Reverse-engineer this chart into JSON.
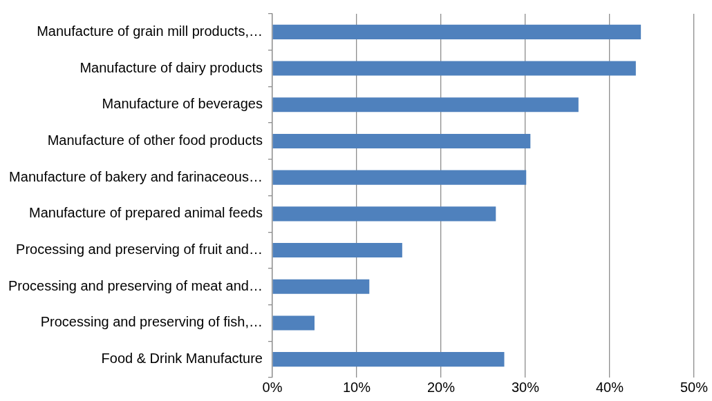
{
  "chart_data": {
    "type": "bar",
    "orientation": "horizontal",
    "categories": [
      "Manufacture of grain mill products,…",
      "Manufacture of dairy products",
      "Manufacture of beverages",
      "Manufacture of other food products",
      "Manufacture of bakery and farinaceous…",
      "Manufacture of prepared animal feeds",
      "Processing and preserving of fruit and…",
      "Processing and preserving of meat and…",
      "Processing and preserving of fish,…",
      "Food & Drink Manufacture"
    ],
    "values": [
      43.7,
      43.1,
      36.3,
      30.6,
      30.1,
      26.5,
      15.4,
      11.5,
      5.0,
      27.5
    ],
    "color": "#4f81bd",
    "xlim": [
      0,
      50
    ],
    "xticks": [
      {
        "value": 0,
        "label": "0%"
      },
      {
        "value": 10,
        "label": "10%"
      },
      {
        "value": 20,
        "label": "20%"
      },
      {
        "value": 30,
        "label": "30%"
      },
      {
        "value": 40,
        "label": "40%"
      },
      {
        "value": 50,
        "label": "50%"
      }
    ],
    "grid": "x"
  }
}
